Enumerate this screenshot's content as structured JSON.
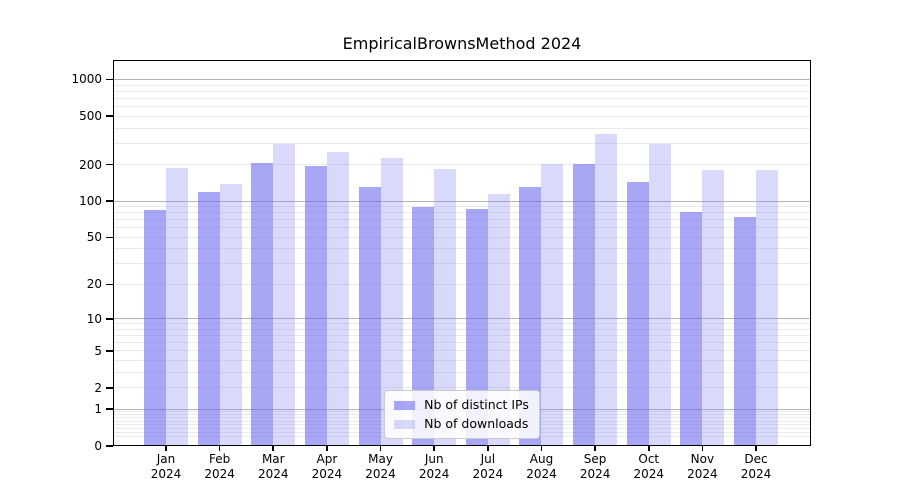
{
  "title": "EmpiricalBrownsMethod 2024",
  "legend": {
    "items": [
      {
        "label": "Nb of distinct IPs",
        "color": "rgba(101,101,240,0.57)"
      },
      {
        "label": "Nb of downloads",
        "color": "rgba(140,140,245,0.33)"
      }
    ]
  },
  "chart_data": {
    "type": "bar",
    "title": "EmpiricalBrownsMethod 2024",
    "year": "2024",
    "categories": [
      "Jan",
      "Feb",
      "Mar",
      "Apr",
      "May",
      "Jun",
      "Jul",
      "Aug",
      "Sep",
      "Oct",
      "Nov",
      "Dec"
    ],
    "series": [
      {
        "name": "Nb of distinct IPs",
        "color": "rgba(101,101,240,0.57)",
        "values": [
          85,
          119,
          206,
          197,
          131,
          90,
          86,
          130,
          202,
          145,
          81,
          74
        ]
      },
      {
        "name": "Nb of downloads",
        "color": "rgba(140,140,245,0.33)",
        "values": [
          187,
          139,
          296,
          256,
          225,
          184,
          114,
          202,
          358,
          296,
          181,
          181
        ]
      }
    ],
    "yscale": "log1p",
    "y_ticks": [
      0,
      1,
      2,
      5,
      10,
      20,
      50,
      100,
      200,
      500,
      1000
    ],
    "ylim": [
      0,
      1450
    ],
    "grid": "both",
    "legend_position": "lower center",
    "colors": {
      "axis": "#000000",
      "grid_major": "#b4b4b4",
      "grid_minor": "#eaeaea",
      "background": "#ffffff"
    }
  }
}
